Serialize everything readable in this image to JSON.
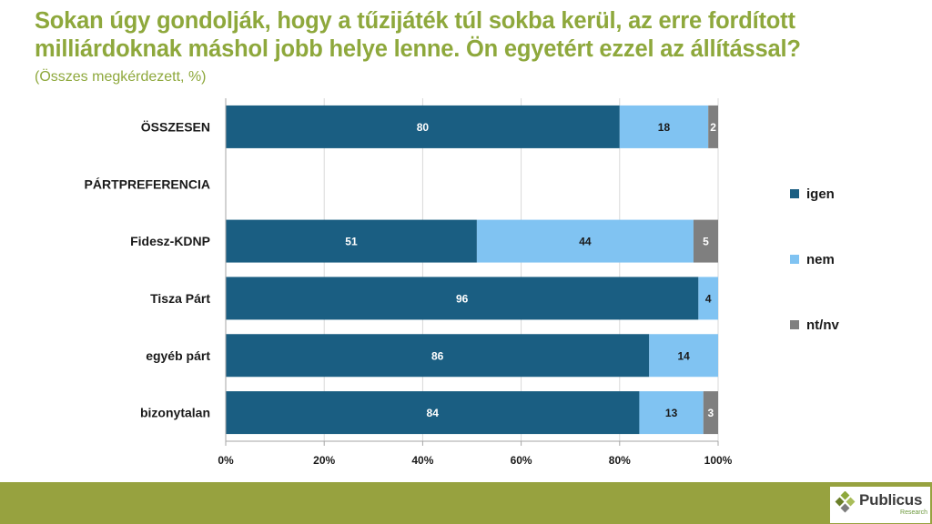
{
  "title_lines": [
    "Sokan úgy gondolják, hogy a tűzijáték túl sokba kerül, az erre fordított",
    "milliárdoknak máshol jobb helye lenne. Ön egyetért ezzel az állítással?"
  ],
  "subtitle": "(Összes megkérdezett, %)",
  "colors": {
    "title": "#8ea83c",
    "igen": "#1a5e82",
    "nem": "#80c3f2",
    "ntnv": "#7f7f7f",
    "band": "#97a23f",
    "grid": "#d9d9d9",
    "axis": "#a6a6a6",
    "text": "#1a1a1a"
  },
  "chart_data": {
    "type": "bar",
    "orientation": "horizontal",
    "stacked": true,
    "categories": [
      "ÖSSZESEN",
      "PÁRTPREFERENCIA",
      "Fidesz-KDNP",
      "Tisza Párt",
      "egyéb párt",
      "bizonytalan"
    ],
    "series": [
      {
        "name": "igen",
        "values": [
          80,
          null,
          51,
          96,
          86,
          84
        ]
      },
      {
        "name": "nem",
        "values": [
          18,
          null,
          44,
          4,
          14,
          13
        ]
      },
      {
        "name": "nt/nv",
        "values": [
          2,
          null,
          5,
          0,
          0,
          3
        ]
      }
    ],
    "xlim": [
      0,
      100
    ],
    "xticks": [
      "0%",
      "20%",
      "40%",
      "60%",
      "80%",
      "100%"
    ],
    "grid": "vertical",
    "legend": "right"
  },
  "logo": {
    "name": "Publicus",
    "sub": "Research"
  }
}
